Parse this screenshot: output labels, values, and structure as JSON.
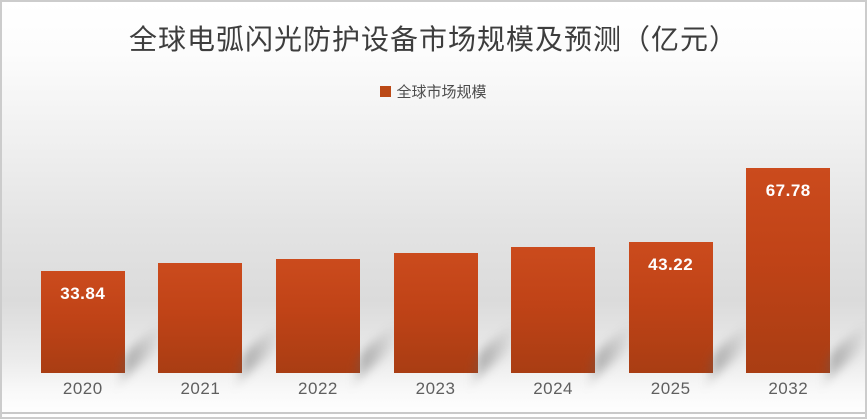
{
  "chart": {
    "title": "全球电弧闪光防护设备市场规模及预测（亿元）",
    "legend": {
      "label": "全球市场规模",
      "swatch_color": "#bb4916"
    }
  },
  "chart_data": {
    "type": "bar",
    "title": "全球电弧闪光防护设备市场规模及预测（亿元）",
    "categories": [
      "2020",
      "2021",
      "2022",
      "2023",
      "2024",
      "2025",
      "2032"
    ],
    "series": [
      {
        "name": "全球市场规模",
        "values": [
          33.84,
          36.2,
          37.7,
          39.7,
          41.7,
          43.22,
          67.78
        ]
      }
    ],
    "data_labels": [
      "33.84",
      null,
      null,
      null,
      null,
      "43.22",
      "67.78"
    ],
    "xlabel": "",
    "ylabel": "",
    "ylim": [
      0,
      76
    ],
    "grid": false,
    "y_axis_shown": false,
    "legend_position": "top-center",
    "colors": {
      "bar_top": "#cb4b1d",
      "bar_bottom": "#a93d13",
      "legend_swatch": "#bb4916",
      "title_text": "#3d3d3d",
      "axis_label_text": "#5f5f5f",
      "data_label_text": "#ffffff",
      "panel_border": "#cccccc"
    }
  }
}
